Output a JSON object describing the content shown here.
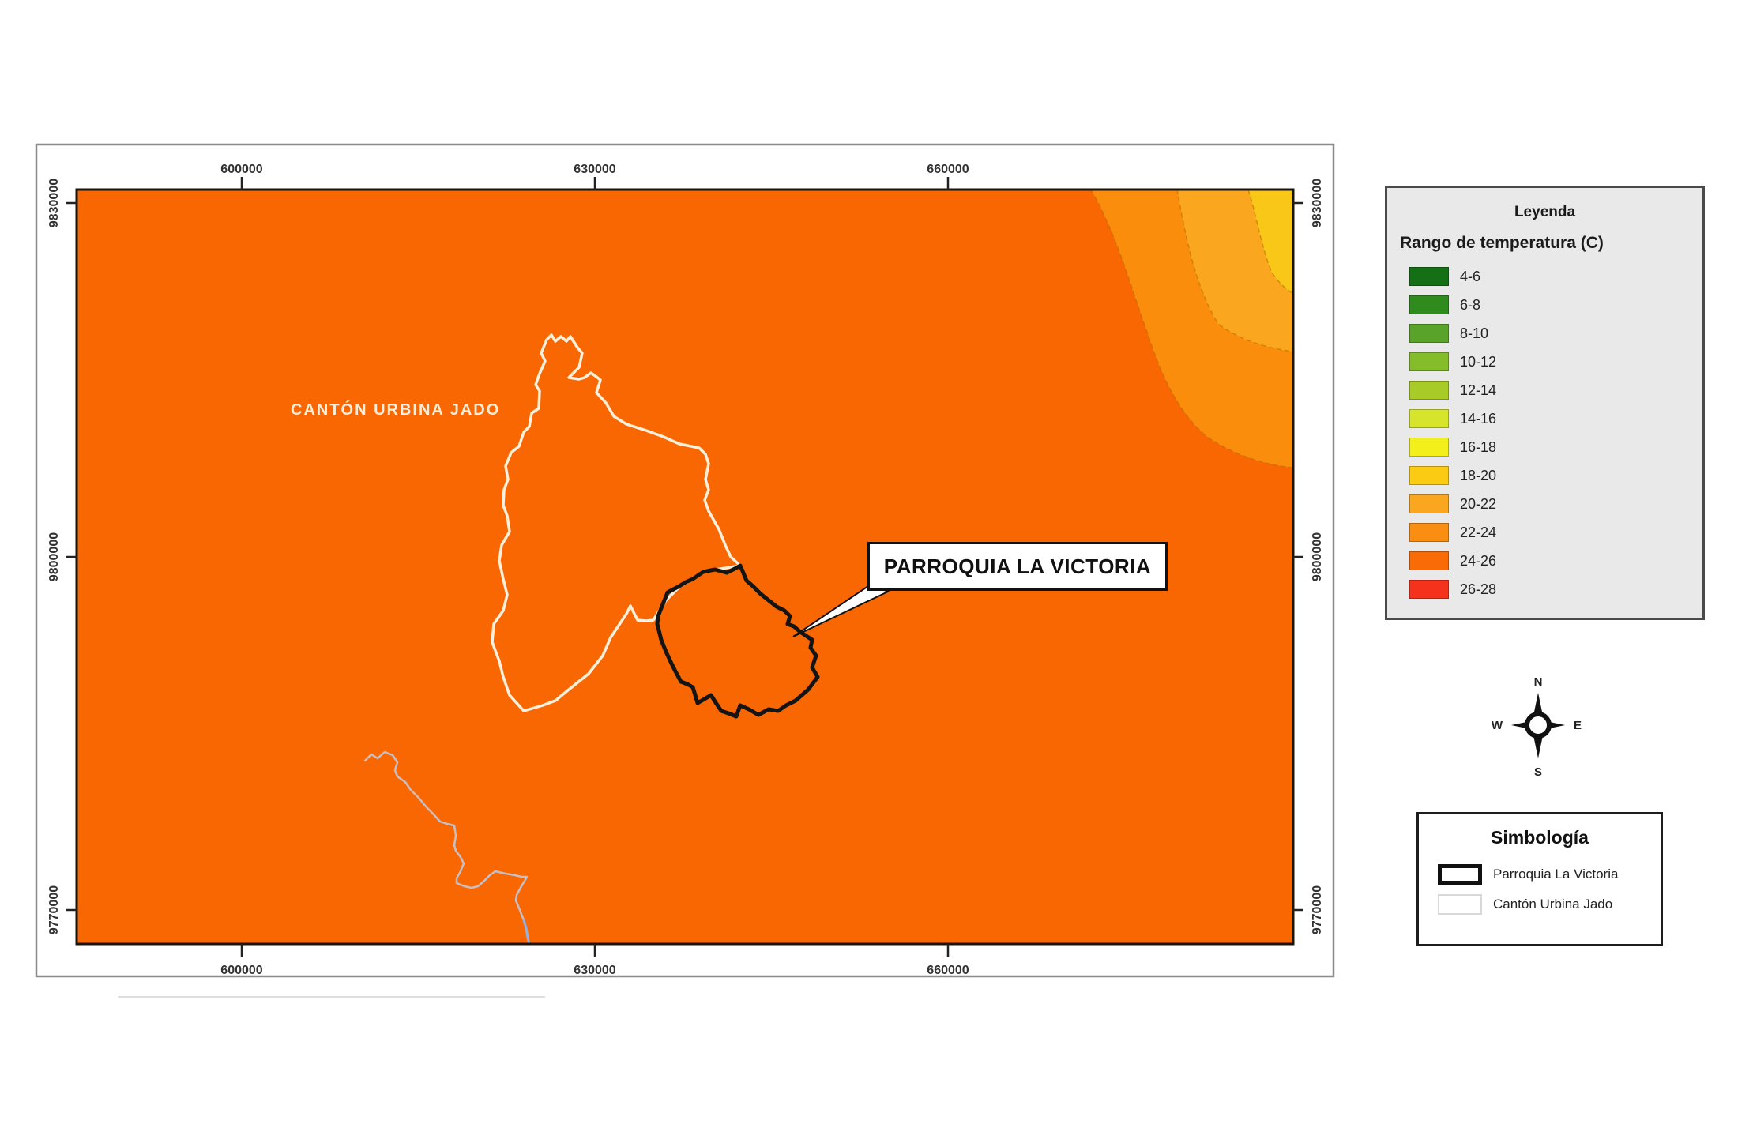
{
  "map": {
    "region_label": "CANTÓN URBINA JADO",
    "callout_label": "PARROQUIA LA VICTORIA",
    "axis": {
      "x_ticks": [
        "600000",
        "630000",
        "660000"
      ],
      "y_ticks": [
        "9830000",
        "9800000",
        "9770000"
      ]
    },
    "colors": {
      "base_24_26": "#F96702",
      "band_22_24": "#FA8E0C",
      "band_20_22": "#FAA71F",
      "band_18_20": "#F8C717",
      "contour_line": "#B06A00",
      "canton_outline": "#FBF0DC",
      "parroquia_outline": "#141414",
      "river": "#C7BFC6",
      "river_tail": "#8FB3E8",
      "region_label_color": "#FBEEDA"
    }
  },
  "legend": {
    "title": "Leyenda",
    "subtitle": "Rango de temperatura (C)",
    "items": [
      {
        "label": "4-6",
        "color": "#156F15"
      },
      {
        "label": "6-8",
        "color": "#2F8B1D"
      },
      {
        "label": "8-10",
        "color": "#5AA32B"
      },
      {
        "label": "10-12",
        "color": "#85BC2A"
      },
      {
        "label": "12-14",
        "color": "#A9CB28"
      },
      {
        "label": "14-16",
        "color": "#D6E52C"
      },
      {
        "label": "16-18",
        "color": "#F2EF1B"
      },
      {
        "label": "18-20",
        "color": "#FBCA12"
      },
      {
        "label": "20-22",
        "color": "#FAA71F"
      },
      {
        "label": "22-24",
        "color": "#F98E12"
      },
      {
        "label": "24-26",
        "color": "#F96B06"
      },
      {
        "label": "26-28",
        "color": "#F5321C"
      }
    ]
  },
  "compass": {
    "north": "N",
    "east": "E",
    "south": "S",
    "west": "W"
  },
  "symbology": {
    "title": "Simbología",
    "items": [
      {
        "label": "Parroquia La Victoria"
      },
      {
        "label": "Cantón Urbina Jado"
      }
    ]
  }
}
